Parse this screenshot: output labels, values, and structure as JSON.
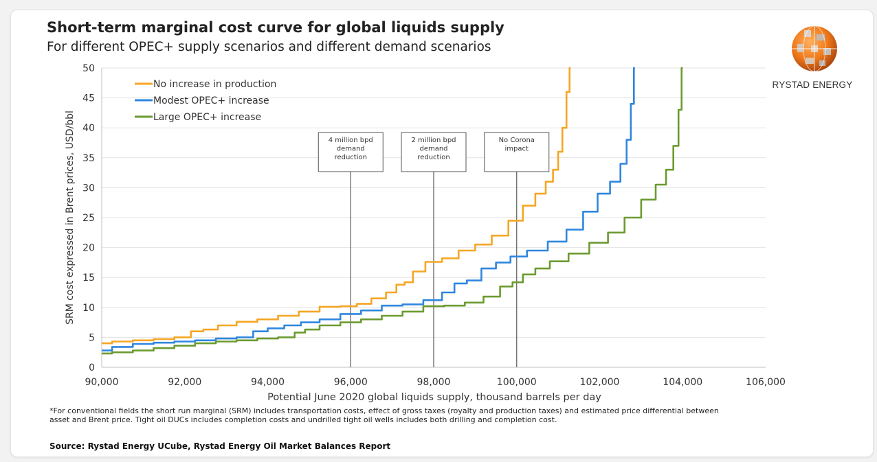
{
  "title": "Short-term marginal cost curve for global liquids supply",
  "subtitle": "For different OPEC+ supply scenarios and different demand scenarios",
  "logo": {
    "text": "RYSTAD ENERGY",
    "icon": "rystad-globe-logo"
  },
  "footnote": "*For conventional fields the short run marginal (SRM) includes transportation costs, effect of gross taxes (royalty and production taxes) and estimated price differential between asset and Brent price. Tight oil DUCs includes completion costs and undrilled tight oil wells includes both drilling and completion cost.",
  "source": "Source: Rystad Energy UCube, Rystad Energy Oil Market Balances Report",
  "chart_data": {
    "type": "line",
    "xlabel": "Potential June 2020 global liquids supply, thousand barrels per day",
    "ylabel": "SRM cost expressed in Brent prices, USD/bbl",
    "xlim": [
      90000,
      106000
    ],
    "ylim": [
      0,
      50
    ],
    "x_ticks": [
      "90,000",
      "92,000",
      "94,000",
      "96,000",
      "98,000",
      "100,000",
      "102,000",
      "104,000",
      "106,000"
    ],
    "y_ticks": [
      "0",
      "5",
      "10",
      "15",
      "20",
      "25",
      "30",
      "35",
      "40",
      "45",
      "50"
    ],
    "grid": "horizontal",
    "legend_position": "top-left",
    "series": [
      {
        "name": "No increase in production",
        "color": "#f5a623",
        "points": [
          [
            90000,
            4.0
          ],
          [
            90500,
            4.3
          ],
          [
            91000,
            4.5
          ],
          [
            91500,
            4.7
          ],
          [
            92000,
            5.0
          ],
          [
            92300,
            6.0
          ],
          [
            92600,
            6.3
          ],
          [
            93000,
            7.0
          ],
          [
            93500,
            7.6
          ],
          [
            94000,
            8.0
          ],
          [
            94500,
            8.6
          ],
          [
            95000,
            9.3
          ],
          [
            95500,
            10.1
          ],
          [
            96000,
            10.2
          ],
          [
            96300,
            10.6
          ],
          [
            96700,
            11.5
          ],
          [
            97000,
            12.5
          ],
          [
            97200,
            13.8
          ],
          [
            97400,
            14.2
          ],
          [
            97600,
            16.0
          ],
          [
            98000,
            17.6
          ],
          [
            98400,
            18.2
          ],
          [
            98800,
            19.5
          ],
          [
            99200,
            20.5
          ],
          [
            99600,
            22.0
          ],
          [
            100000,
            24.5
          ],
          [
            100300,
            27.0
          ],
          [
            100600,
            29.0
          ],
          [
            100800,
            31.0
          ],
          [
            100950,
            33.0
          ],
          [
            101050,
            36.0
          ],
          [
            101150,
            40.0
          ],
          [
            101250,
            46.0
          ],
          [
            101300,
            50.0
          ]
        ]
      },
      {
        "name": "Modest OPEC+ increase",
        "color": "#2e86de",
        "points": [
          [
            90000,
            2.8
          ],
          [
            90500,
            3.4
          ],
          [
            91000,
            3.9
          ],
          [
            91500,
            4.1
          ],
          [
            92000,
            4.3
          ],
          [
            92500,
            4.5
          ],
          [
            93000,
            4.8
          ],
          [
            93500,
            5.0
          ],
          [
            93800,
            6.0
          ],
          [
            94200,
            6.5
          ],
          [
            94600,
            7.0
          ],
          [
            95000,
            7.5
          ],
          [
            95500,
            8.0
          ],
          [
            96000,
            8.9
          ],
          [
            96500,
            9.5
          ],
          [
            97000,
            10.3
          ],
          [
            97500,
            10.5
          ],
          [
            98000,
            11.2
          ],
          [
            98400,
            12.5
          ],
          [
            98600,
            14.0
          ],
          [
            99000,
            14.5
          ],
          [
            99300,
            16.5
          ],
          [
            99700,
            17.5
          ],
          [
            100000,
            18.5
          ],
          [
            100500,
            19.5
          ],
          [
            101000,
            21.0
          ],
          [
            101400,
            23.0
          ],
          [
            101800,
            26.0
          ],
          [
            102100,
            29.0
          ],
          [
            102400,
            31.0
          ],
          [
            102600,
            34.0
          ],
          [
            102700,
            38.0
          ],
          [
            102800,
            44.0
          ],
          [
            102850,
            50.0
          ]
        ]
      },
      {
        "name": "Large OPEC+ increase",
        "color": "#6b9a2f",
        "points": [
          [
            90000,
            2.3
          ],
          [
            90500,
            2.5
          ],
          [
            91000,
            2.8
          ],
          [
            91500,
            3.2
          ],
          [
            92000,
            3.6
          ],
          [
            92500,
            4.0
          ],
          [
            93000,
            4.3
          ],
          [
            93500,
            4.5
          ],
          [
            94000,
            4.8
          ],
          [
            94500,
            5.0
          ],
          [
            94800,
            5.8
          ],
          [
            95000,
            6.3
          ],
          [
            95500,
            7.0
          ],
          [
            96000,
            7.5
          ],
          [
            96500,
            8.0
          ],
          [
            97000,
            8.6
          ],
          [
            97500,
            9.3
          ],
          [
            98000,
            10.2
          ],
          [
            98500,
            10.3
          ],
          [
            99000,
            10.8
          ],
          [
            99400,
            11.8
          ],
          [
            99800,
            13.5
          ],
          [
            100000,
            14.2
          ],
          [
            100300,
            15.5
          ],
          [
            100600,
            16.5
          ],
          [
            101000,
            17.7
          ],
          [
            101500,
            19.0
          ],
          [
            102000,
            20.8
          ],
          [
            102400,
            22.5
          ],
          [
            102800,
            25.0
          ],
          [
            103200,
            28.0
          ],
          [
            103500,
            30.5
          ],
          [
            103700,
            33.0
          ],
          [
            103850,
            37.0
          ],
          [
            103950,
            43.0
          ],
          [
            104000,
            50.0
          ]
        ]
      }
    ],
    "annotations": [
      {
        "label_lines": [
          "4 million bpd",
          "demand",
          "reduction"
        ],
        "x": 96000
      },
      {
        "label_lines": [
          "2 million bpd",
          "demand",
          "reduction"
        ],
        "x": 98000
      },
      {
        "label_lines": [
          "No Corona",
          "impact"
        ],
        "x": 100000
      }
    ]
  }
}
